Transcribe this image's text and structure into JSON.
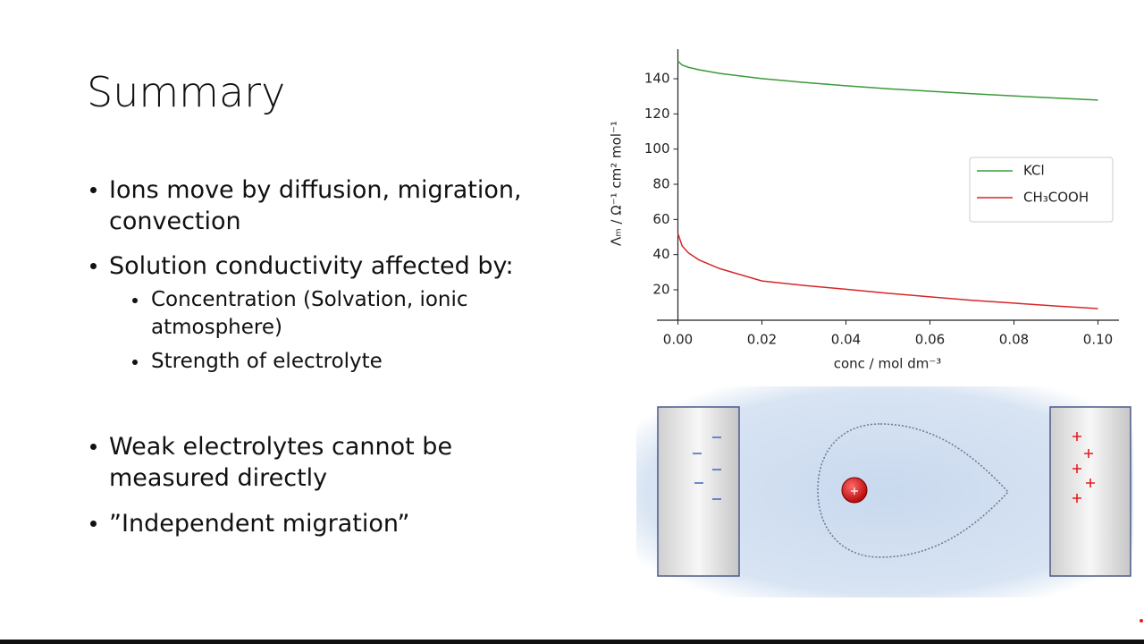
{
  "slide": {
    "title": "Summary",
    "bullets": [
      {
        "text": "Ions move by diffusion, migration, convection"
      },
      {
        "text": "Solution conductivity affected by:",
        "sub": [
          "Concentration (Solvation, ionic atmosphere)",
          "Strength of electrolyte"
        ]
      },
      {
        "text": "Weak electrolytes cannot be measured directly"
      },
      {
        "text": "”Independent migration”"
      }
    ]
  },
  "chart_data": {
    "type": "line",
    "x_label": "conc / mol dm⁻³",
    "y_label": "Λₘ / Ω⁻¹ cm² mol⁻¹",
    "x": [
      0,
      0.001,
      0.0025,
      0.005,
      0.01,
      0.02,
      0.03,
      0.04,
      0.05,
      0.06,
      0.07,
      0.08,
      0.09,
      0.1
    ],
    "series": [
      {
        "name": "KCl",
        "color": "#3a9a3a",
        "values": [
          150,
          147.8,
          146.5,
          145.1,
          143,
          140.1,
          137.9,
          136,
          134.3,
          132.9,
          131.5,
          130.2,
          129,
          127.9
        ]
      },
      {
        "name": "CH₃COOH",
        "color": "#d62728",
        "values": [
          52,
          45,
          41,
          37,
          32,
          25,
          22.5,
          20.3,
          18,
          16,
          14,
          12.4,
          10.8,
          9.3
        ]
      }
    ],
    "xlim": [
      -0.005,
      0.105
    ],
    "ylim": [
      2.7,
      156.8
    ],
    "xticks": [
      {
        "value": 0,
        "label": "0.00"
      },
      {
        "value": 0.02,
        "label": "0.02"
      },
      {
        "value": 0.04,
        "label": "0.04"
      },
      {
        "value": 0.06,
        "label": "0.06"
      },
      {
        "value": 0.08,
        "label": "0.08"
      },
      {
        "value": 0.1,
        "label": "0.10"
      }
    ],
    "yticks": [
      20,
      40,
      60,
      80,
      100,
      120,
      140
    ],
    "legend": "upper right"
  }
}
